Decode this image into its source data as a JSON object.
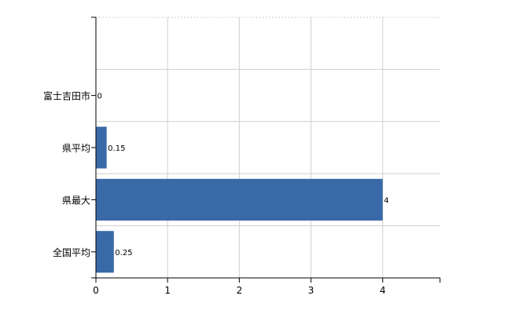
{
  "chart_data": {
    "type": "bar",
    "orientation": "horizontal",
    "categories": [
      "富士吉田市",
      "県平均",
      "県最大",
      "全国平均"
    ],
    "values": [
      0,
      0.15,
      4,
      0.25
    ],
    "data_labels": [
      "0",
      "0.15",
      "4",
      "0.25"
    ],
    "x_ticks": [
      "0",
      "1",
      "2",
      "3",
      "4"
    ],
    "xlim": [
      0,
      4.8
    ],
    "grid": true,
    "bar_color": "#3a69a8"
  }
}
